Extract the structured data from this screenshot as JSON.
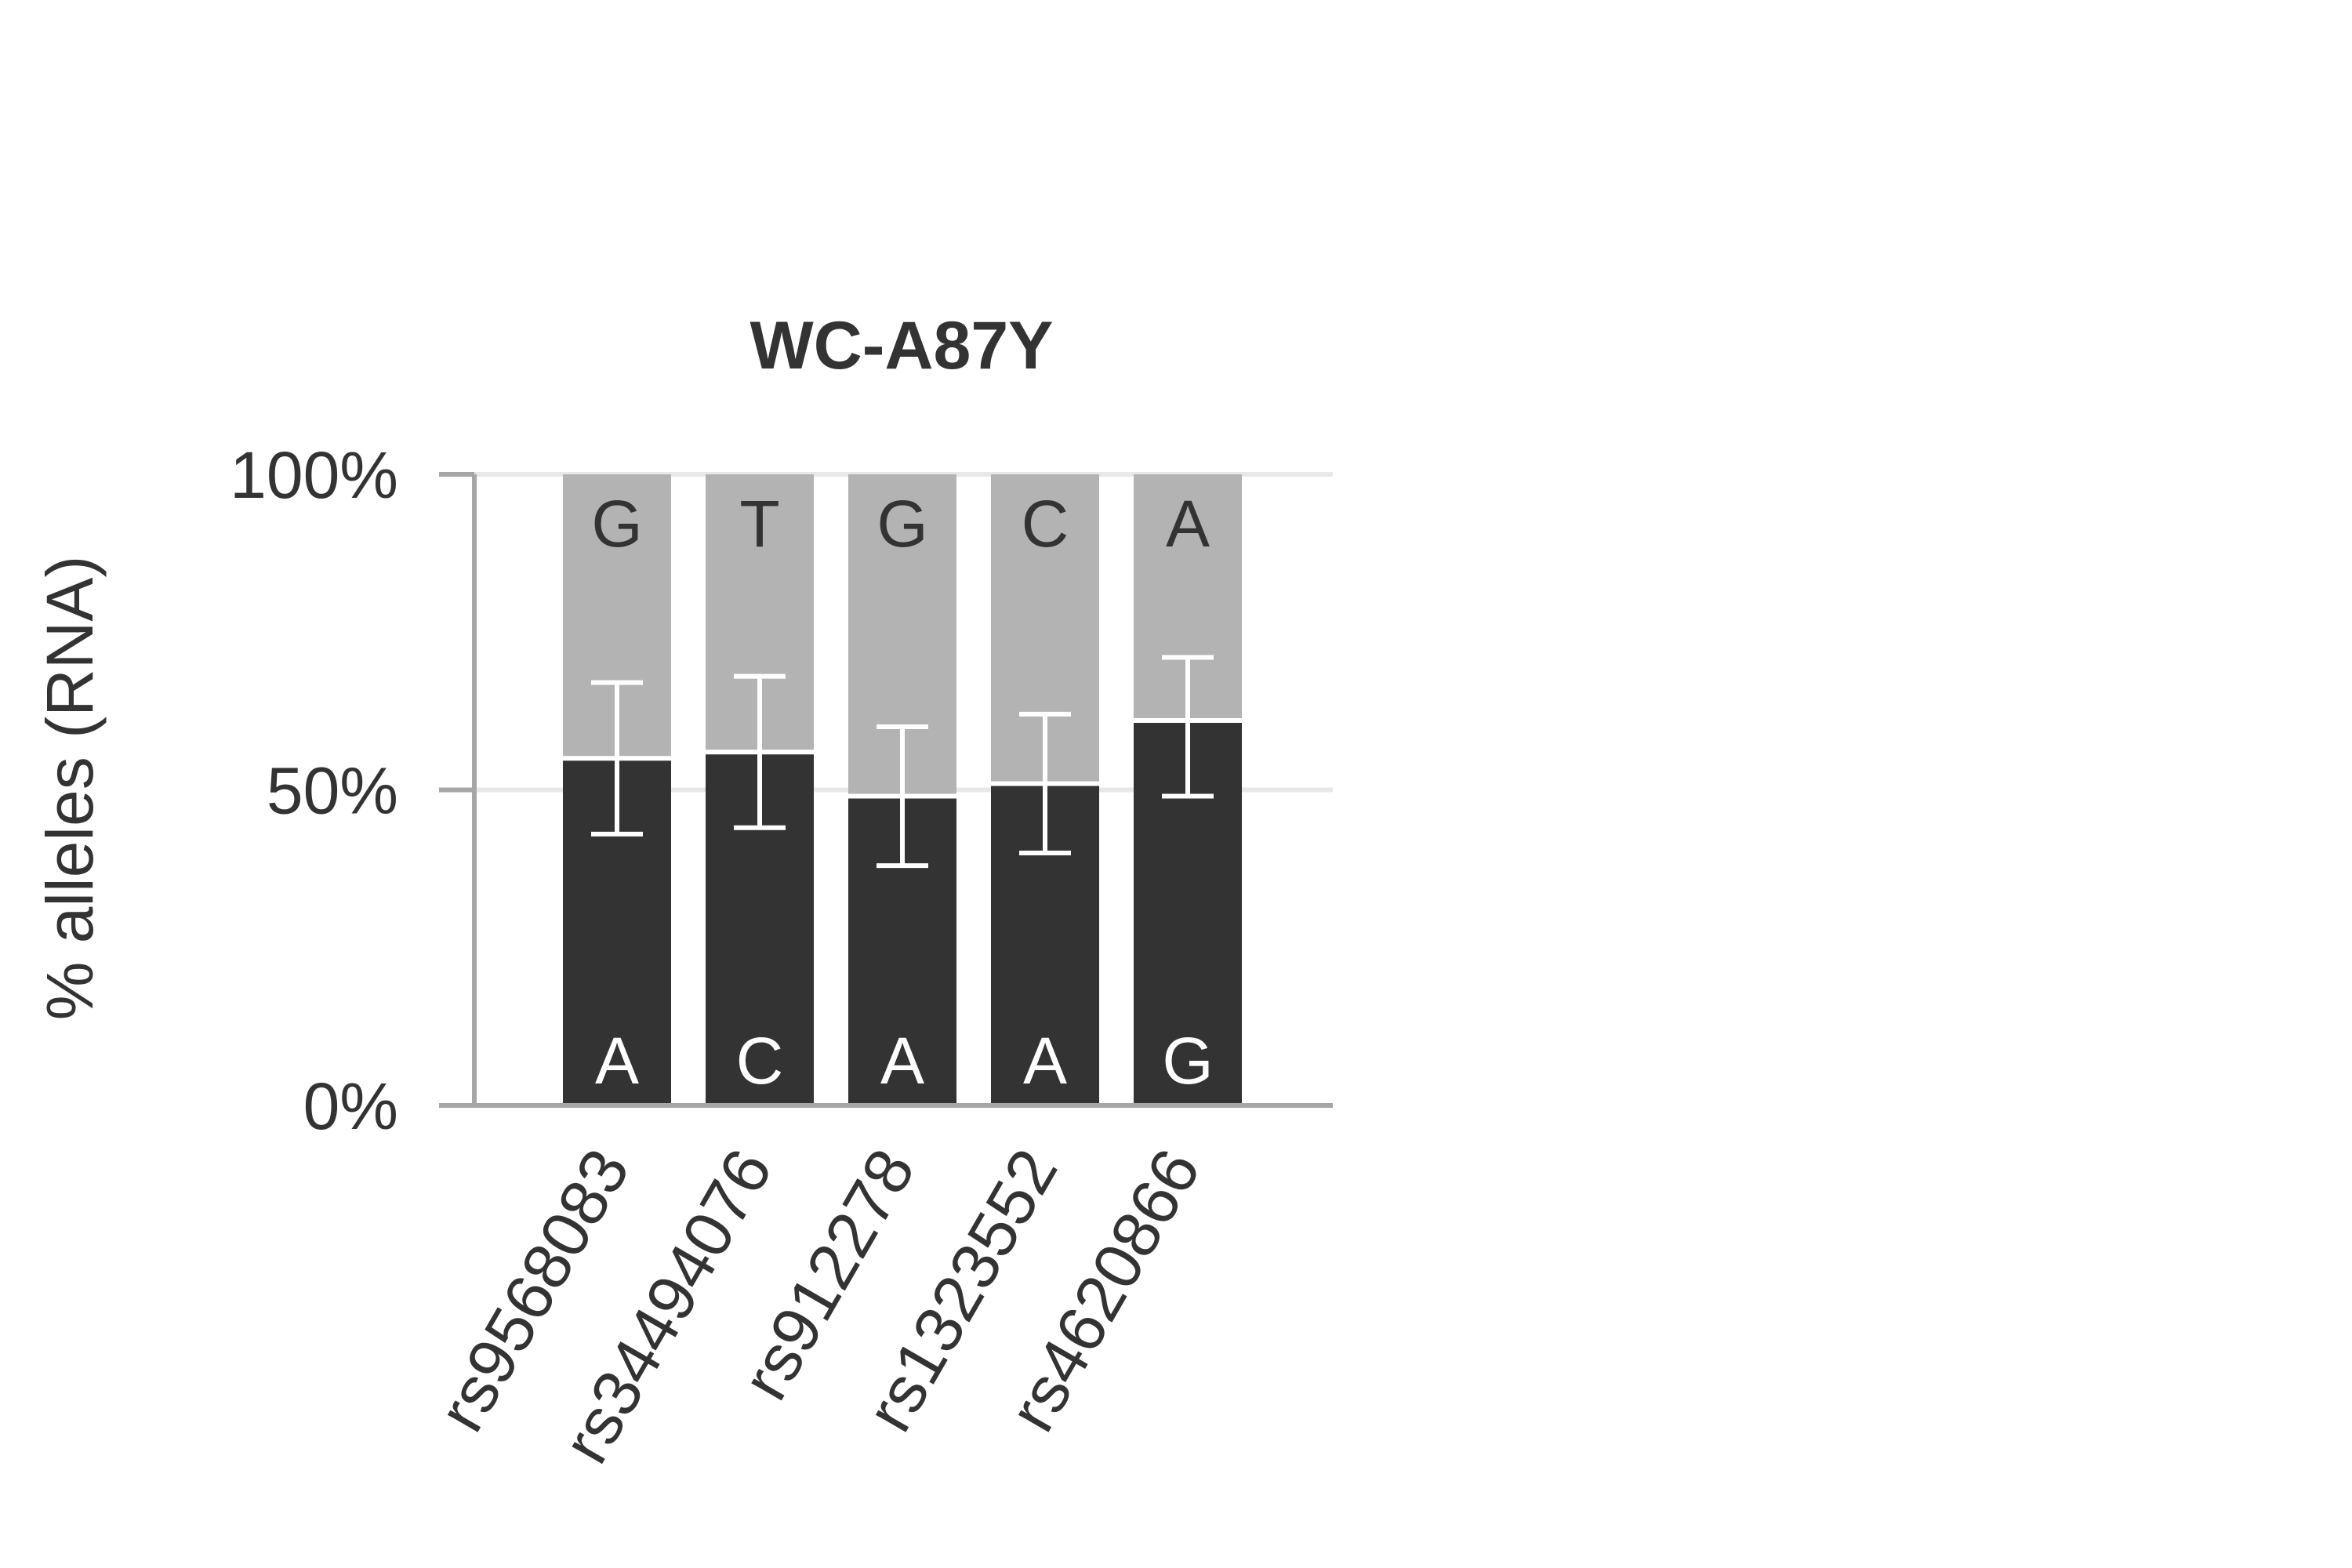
{
  "chart_data": {
    "type": "bar",
    "stacked": true,
    "title": "WC-A87Y",
    "ylabel": "% alleles (RNA)",
    "xlabel": "",
    "ylim": [
      0,
      100
    ],
    "yticks": [
      0,
      50,
      100
    ],
    "ytick_labels": [
      "0%",
      "50%",
      "100%"
    ],
    "grid": true,
    "categories": [
      "rs9568083",
      "rs34494076",
      "rs912278",
      "rs1323552",
      "rs4620866"
    ],
    "series": [
      {
        "role": "lower",
        "color": "#333333",
        "values": [
          55,
          56,
          49,
          51,
          61
        ],
        "allele_labels": [
          "A",
          "C",
          "A",
          "A",
          "G"
        ]
      },
      {
        "role": "upper",
        "color": "#b3b3b3",
        "values": [
          45,
          44,
          51,
          49,
          39
        ],
        "allele_labels": [
          "G",
          "T",
          "G",
          "C",
          "A"
        ]
      }
    ],
    "error_bars": {
      "low": [
        43,
        44,
        38,
        40,
        49
      ],
      "high": [
        67,
        68,
        60,
        62,
        71
      ]
    },
    "colors": {
      "axis": "#a6a6a6",
      "grid": "#e8e8e8",
      "error_bar": "#ffffff",
      "text": "#333333"
    }
  }
}
